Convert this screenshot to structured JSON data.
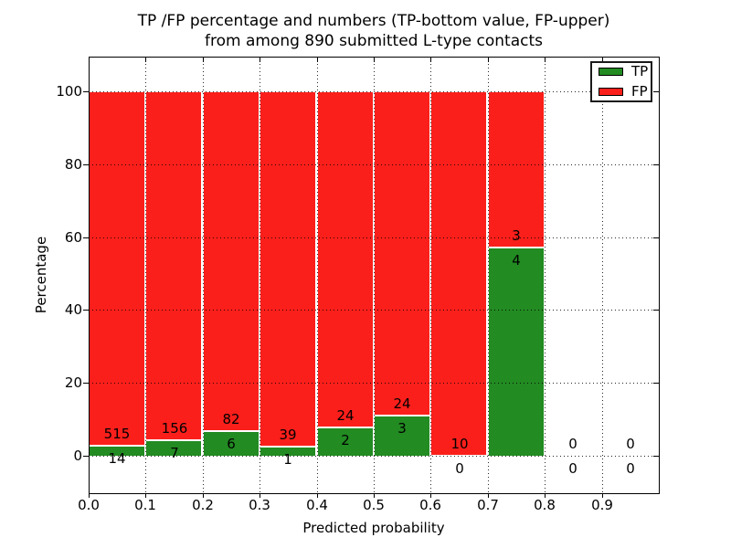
{
  "chart_data": {
    "type": "bar",
    "stacked": true,
    "title_line1": "TP /FP percentage and numbers (TP-bottom value, FP-upper)",
    "title_line2": "from among 890 submitted L-type contacts",
    "xlabel": "Predicted probability",
    "ylabel": "Percentage",
    "x_tick_labels": [
      "0.0",
      "0.1",
      "0.2",
      "0.3",
      "0.4",
      "0.5",
      "0.6",
      "0.7",
      "0.8",
      "0.9"
    ],
    "y_tick_values": [
      0,
      20,
      40,
      60,
      80,
      100
    ],
    "xlim": [
      0.0,
      1.0
    ],
    "ylim": [
      -10,
      110
    ],
    "bin_width": 0.1,
    "grid": "dotted black, drawn above bars",
    "legend_position": "upper right",
    "legend": [
      {
        "label": "TP",
        "color": "#228b22"
      },
      {
        "label": "FP",
        "color": "#fb1f1b"
      }
    ],
    "colors": {
      "tp": "#228b22",
      "fp": "#fb1f1b"
    },
    "bins": [
      {
        "range": [
          0.0,
          0.1
        ],
        "tp": 14,
        "fp": 515
      },
      {
        "range": [
          0.1,
          0.2
        ],
        "tp": 7,
        "fp": 156
      },
      {
        "range": [
          0.2,
          0.3
        ],
        "tp": 6,
        "fp": 82
      },
      {
        "range": [
          0.3,
          0.4
        ],
        "tp": 1,
        "fp": 39
      },
      {
        "range": [
          0.4,
          0.5
        ],
        "tp": 2,
        "fp": 24
      },
      {
        "range": [
          0.5,
          0.6
        ],
        "tp": 3,
        "fp": 24
      },
      {
        "range": [
          0.6,
          0.7
        ],
        "tp": 0,
        "fp": 10
      },
      {
        "range": [
          0.7,
          0.8
        ],
        "tp": 4,
        "fp": 3
      },
      {
        "range": [
          0.8,
          0.9
        ],
        "tp": 0,
        "fp": 0
      },
      {
        "range": [
          0.9,
          1.0
        ],
        "tp": 0,
        "fp": 0
      }
    ]
  }
}
